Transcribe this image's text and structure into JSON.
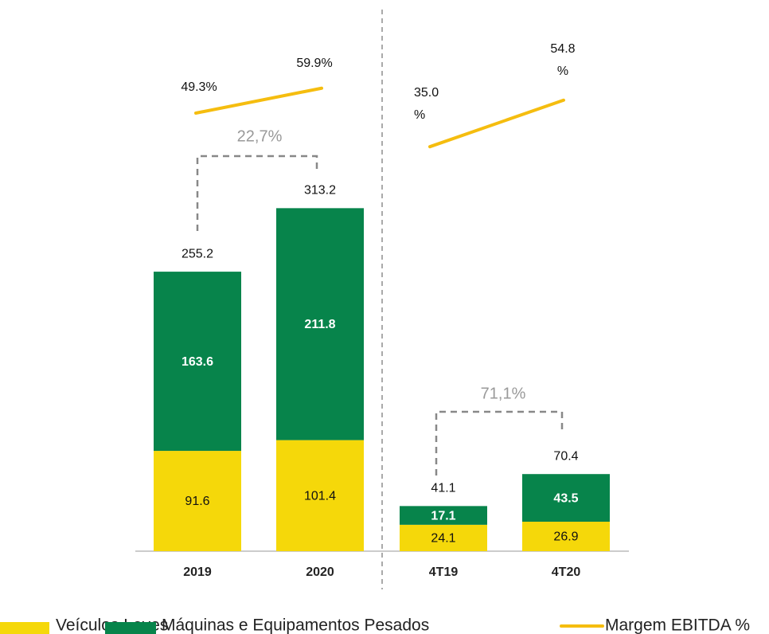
{
  "chart_data": {
    "type": "stacked_bar",
    "categories": [
      "2019",
      "2020",
      "4T19",
      "4T20"
    ],
    "series": [
      {
        "name": "Veículos Leves",
        "color": "#f5d80a",
        "values": [
          91.6,
          101.4,
          24.1,
          26.9
        ]
      },
      {
        "name": "Máquinas e Equipamentos Pesados",
        "color": "#07844b",
        "values": [
          163.6,
          211.8,
          17.1,
          43.5
        ]
      },
      {
        "name": "Margem EBITDA %",
        "type": "line",
        "color": "#f5bd0f",
        "values": [
          49.3,
          59.9,
          35.0,
          54.8
        ],
        "value_labels": [
          "49.3%",
          "59.9%",
          "35.0 %",
          "54.8 %"
        ]
      }
    ],
    "totals": [
      255.2,
      313.2,
      41.1,
      70.4
    ],
    "annotations": [
      "22,7%",
      "71,1%"
    ]
  }
}
